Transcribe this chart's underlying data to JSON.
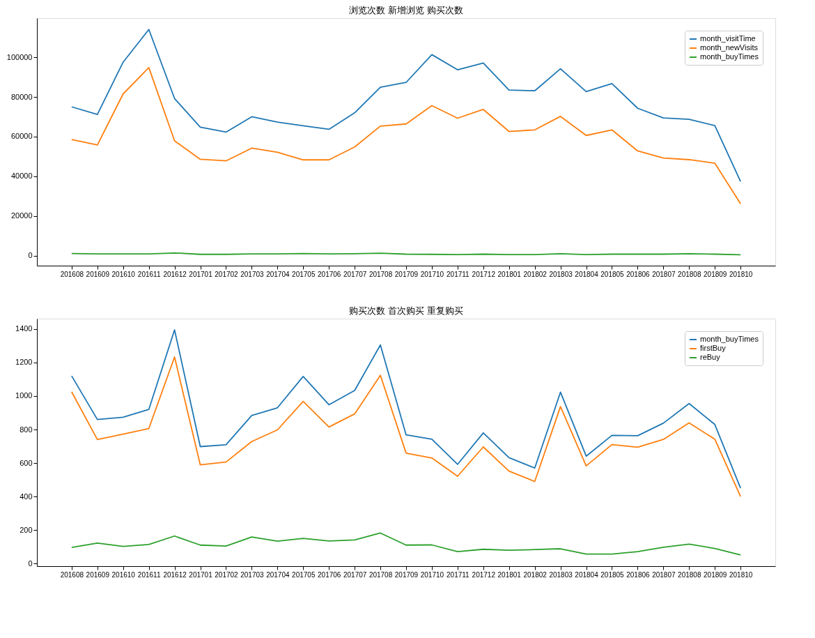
{
  "chart_data": [
    {
      "type": "line",
      "title": "浏览次数 新增浏览 购买次数",
      "categories": [
        "201608",
        "201609",
        "201610",
        "201611",
        "201612",
        "201701",
        "201702",
        "201703",
        "201704",
        "201705",
        "201706",
        "201707",
        "201708",
        "201709",
        "201710",
        "201711",
        "201712",
        "201801",
        "201802",
        "201803",
        "201804",
        "201805",
        "201806",
        "201807",
        "201808",
        "201809",
        "201810"
      ],
      "series": [
        {
          "name": "month_visitTime",
          "color": "#1f77b4",
          "values": [
            75000,
            71200,
            97500,
            114000,
            79200,
            64800,
            62300,
            70000,
            67300,
            65500,
            63700,
            72000,
            84900,
            87300,
            101300,
            93700,
            97100,
            83500,
            83100,
            94200,
            82700,
            86700,
            74300,
            69400,
            68700,
            65600,
            37400
          ]
        },
        {
          "name": "month_newVisits",
          "color": "#ff7f0e",
          "values": [
            58500,
            55800,
            81500,
            94800,
            57900,
            48600,
            47800,
            54200,
            52100,
            48300,
            48300,
            54800,
            65300,
            66400,
            75600,
            69300,
            73700,
            62600,
            63400,
            70200,
            60600,
            63400,
            52800,
            49200,
            48400,
            46600,
            26200
          ]
        },
        {
          "name": "month_buyTimes",
          "color": "#2ca02c",
          "values": [
            1100,
            900,
            900,
            900,
            1400,
            700,
            700,
            900,
            900,
            1100,
            900,
            1000,
            1300,
            800,
            700,
            600,
            800,
            600,
            600,
            1000,
            600,
            800,
            800,
            800,
            1000,
            800,
            500
          ]
        }
      ],
      "ylim": [
        -5000,
        119700
      ],
      "yticks": [
        0,
        20000,
        40000,
        60000,
        80000,
        100000
      ],
      "legend": "top right",
      "grid": false
    },
    {
      "type": "line",
      "title": "购买次数 首次购买 重复购买",
      "categories": [
        "201608",
        "201609",
        "201610",
        "201611",
        "201612",
        "201701",
        "201702",
        "201703",
        "201704",
        "201705",
        "201706",
        "201707",
        "201708",
        "201709",
        "201710",
        "201711",
        "201712",
        "201801",
        "201802",
        "201803",
        "201804",
        "201805",
        "201806",
        "201807",
        "201808",
        "201809",
        "201810"
      ],
      "series": [
        {
          "name": "month_buyTimes",
          "color": "#1f77b4",
          "values": [
            1120,
            860,
            873,
            920,
            1395,
            698,
            709,
            884,
            930,
            1117,
            948,
            1033,
            1305,
            768,
            742,
            592,
            780,
            632,
            570,
            1023,
            641,
            765,
            763,
            838,
            955,
            830,
            450
          ]
        },
        {
          "name": "firstBuy",
          "color": "#ff7f0e",
          "values": [
            1025,
            740,
            772,
            806,
            1233,
            589,
            606,
            728,
            798,
            968,
            815,
            893,
            1124,
            659,
            630,
            521,
            696,
            552,
            490,
            937,
            583,
            710,
            694,
            741,
            840,
            742,
            400
          ]
        },
        {
          "name": "reBuy",
          "color": "#2ca02c",
          "values": [
            96,
            122,
            102,
            114,
            164,
            110,
            104,
            158,
            133,
            150,
            134,
            141,
            182,
            110,
            111,
            71,
            85,
            79,
            83,
            88,
            56,
            56,
            71,
            97,
            116,
            90,
            51
          ]
        }
      ],
      "ylim": [
        -16,
        1462
      ],
      "yticks": [
        0,
        200,
        400,
        600,
        800,
        1000,
        1200,
        1400
      ],
      "legend": "top right",
      "grid": false
    }
  ]
}
